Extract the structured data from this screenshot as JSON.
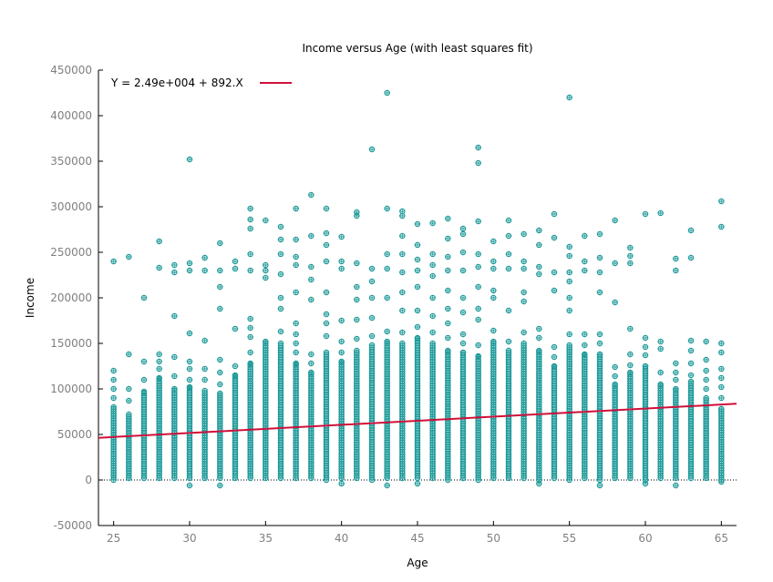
{
  "chart_data": {
    "type": "scatter",
    "title": "Income versus Age (with least squares fit)",
    "xlabel": "Age",
    "ylabel": "Income",
    "xlim": [
      24,
      66
    ],
    "ylim": [
      -50000,
      450000
    ],
    "xticks": [
      25,
      30,
      35,
      40,
      45,
      50,
      55,
      60,
      65
    ],
    "yticks": [
      -50000,
      0,
      50000,
      100000,
      150000,
      200000,
      250000,
      300000,
      350000,
      400000,
      450000
    ],
    "ytick_labels": [
      "-50000",
      "0",
      "50000",
      "100000",
      "150000",
      "200000",
      "250000",
      "300000",
      "350000",
      "400000",
      "450000"
    ],
    "zero_line": {
      "y": 0,
      "style": "dotted"
    },
    "grid": false,
    "legend_position": "top-left",
    "series": [
      {
        "name": "Y = 2.49e+004 + 892.X",
        "kind": "line",
        "color": "#d0103a",
        "intercept": 24900,
        "slope": 892,
        "x": [
          24,
          66
        ]
      },
      {
        "kind": "scatter",
        "color": "#1f9a9a",
        "marker": "circle-cross",
        "bands": [
          {
            "x": 25,
            "dense": [
              0,
              80000
            ],
            "outliers": [
              90000,
              100000,
              110000,
              120000,
              240000
            ]
          },
          {
            "x": 26,
            "dense": [
              2000,
              72000
            ],
            "outliers": [
              87000,
              100000,
              138000,
              245000
            ]
          },
          {
            "x": 27,
            "dense": [
              2000,
              97000
            ],
            "outliers": [
              110000,
              130000,
              200000
            ]
          },
          {
            "x": 28,
            "dense": [
              2000,
              112000
            ],
            "outliers": [
              122000,
              130000,
              138000,
              233000,
              262000
            ]
          },
          {
            "x": 29,
            "dense": [
              2000,
              100000
            ],
            "outliers": [
              114000,
              135000,
              180000,
              228000,
              236000
            ]
          },
          {
            "x": 30,
            "dense": [
              2000,
              102000
            ],
            "outliers": [
              -6000,
              110000,
              122000,
              130000,
              161000,
              230000,
              238000,
              352000
            ]
          },
          {
            "x": 31,
            "dense": [
              2000,
              98000
            ],
            "outliers": [
              110000,
              122000,
              153000,
              230000,
              244000
            ]
          },
          {
            "x": 32,
            "dense": [
              2000,
              95000
            ],
            "outliers": [
              -6000,
              105000,
              118000,
              132000,
              188000,
              212000,
              230000,
              260000
            ]
          },
          {
            "x": 33,
            "dense": [
              2000,
              115000
            ],
            "outliers": [
              125000,
              166000,
              232000,
              240000
            ]
          },
          {
            "x": 34,
            "dense": [
              2000,
              128000
            ],
            "outliers": [
              140000,
              157000,
              167000,
              177000,
              230000,
              248000,
              276000,
              286000,
              298000
            ]
          },
          {
            "x": 35,
            "dense": [
              2000,
              152000
            ],
            "outliers": [
              222000,
              230000,
              236000,
              285000
            ]
          },
          {
            "x": 36,
            "dense": [
              2000,
              150000
            ],
            "outliers": [
              163000,
              188000,
              200000,
              226000,
              248000,
              264000,
              278000
            ]
          },
          {
            "x": 37,
            "dense": [
              2000,
              128000
            ],
            "outliers": [
              140000,
              150000,
              160000,
              172000,
              206000,
              236000,
              245000,
              264000,
              298000
            ]
          },
          {
            "x": 38,
            "dense": [
              2000,
              118000
            ],
            "outliers": [
              128000,
              138000,
              198000,
              220000,
              234000,
              268000,
              313000
            ]
          },
          {
            "x": 39,
            "dense": [
              0,
              140000
            ],
            "outliers": [
              158000,
              172000,
              182000,
              206000,
              240000,
              258000,
              271000,
              298000
            ]
          },
          {
            "x": 40,
            "dense": [
              2000,
              130000
            ],
            "outliers": [
              -4000,
              140000,
              152000,
              175000,
              232000,
              240000,
              267000
            ]
          },
          {
            "x": 41,
            "dense": [
              2000,
              142000
            ],
            "outliers": [
              155000,
              176000,
              198000,
              212000,
              238000,
              290000,
              294000
            ]
          },
          {
            "x": 42,
            "dense": [
              0,
              148000
            ],
            "outliers": [
              158000,
              178000,
              200000,
              218000,
              232000,
              363000
            ]
          },
          {
            "x": 43,
            "dense": [
              2000,
              152000
            ],
            "outliers": [
              -6000,
              163000,
              200000,
              232000,
              248000,
              298000,
              425000
            ]
          },
          {
            "x": 44,
            "dense": [
              2000,
              150000
            ],
            "outliers": [
              162000,
              186000,
              206000,
              228000,
              248000,
              268000,
              290000,
              295000
            ]
          },
          {
            "x": 45,
            "dense": [
              2000,
              156000
            ],
            "outliers": [
              -4000,
              168000,
              186000,
              212000,
              230000,
              242000,
              258000,
              281000
            ]
          },
          {
            "x": 46,
            "dense": [
              2000,
              150000
            ],
            "outliers": [
              162000,
              180000,
              200000,
              224000,
              236000,
              248000,
              282000
            ]
          },
          {
            "x": 47,
            "dense": [
              0,
              142000
            ],
            "outliers": [
              156000,
              172000,
              188000,
              208000,
              230000,
              245000,
              265000,
              287000
            ]
          },
          {
            "x": 48,
            "dense": [
              2000,
              140000
            ],
            "outliers": [
              150000,
              160000,
              184000,
              200000,
              230000,
              250000,
              270000,
              276000
            ]
          },
          {
            "x": 49,
            "dense": [
              0,
              136000
            ],
            "outliers": [
              148000,
              176000,
              188000,
              212000,
              234000,
              248000,
              284000,
              348000,
              365000
            ]
          },
          {
            "x": 50,
            "dense": [
              2000,
              152000
            ],
            "outliers": [
              164000,
              200000,
              208000,
              232000,
              240000,
              262000
            ]
          },
          {
            "x": 51,
            "dense": [
              2000,
              142000
            ],
            "outliers": [
              152000,
              186000,
              232000,
              248000,
              268000,
              285000
            ]
          },
          {
            "x": 52,
            "dense": [
              2000,
              150000
            ],
            "outliers": [
              162000,
              196000,
              206000,
              232000,
              240000,
              270000
            ]
          },
          {
            "x": 53,
            "dense": [
              0,
              142000
            ],
            "outliers": [
              -4000,
              156000,
              166000,
              226000,
              234000,
              258000,
              274000
            ]
          },
          {
            "x": 54,
            "dense": [
              2000,
              125000
            ],
            "outliers": [
              135000,
              146000,
              208000,
              228000,
              266000,
              292000
            ]
          },
          {
            "x": 55,
            "dense": [
              0,
              148000
            ],
            "outliers": [
              160000,
              186000,
              200000,
              218000,
              228000,
              246000,
              256000,
              420000
            ]
          },
          {
            "x": 56,
            "dense": [
              2000,
              138000
            ],
            "outliers": [
              148000,
              160000,
              230000,
              240000,
              268000
            ]
          },
          {
            "x": 57,
            "dense": [
              0,
              138000
            ],
            "outliers": [
              -6000,
              150000,
              160000,
              206000,
              228000,
              244000,
              270000
            ]
          },
          {
            "x": 58,
            "dense": [
              2000,
              105000
            ],
            "outliers": [
              114000,
              124000,
              195000,
              238000,
              285000
            ]
          },
          {
            "x": 59,
            "dense": [
              2000,
              118000
            ],
            "outliers": [
              126000,
              138000,
              166000,
              238000,
              246000,
              255000
            ]
          },
          {
            "x": 60,
            "dense": [
              0,
              125000
            ],
            "outliers": [
              -4000,
              137000,
              146000,
              156000,
              292000
            ]
          },
          {
            "x": 61,
            "dense": [
              2000,
              105000
            ],
            "outliers": [
              118000,
              144000,
              152000,
              293000
            ]
          },
          {
            "x": 62,
            "dense": [
              2000,
              100000
            ],
            "outliers": [
              -6000,
              110000,
              118000,
              128000,
              230000,
              243000
            ]
          },
          {
            "x": 63,
            "dense": [
              2000,
              108000
            ],
            "outliers": [
              115000,
              128000,
              142000,
              153000,
              244000,
              274000
            ]
          },
          {
            "x": 64,
            "dense": [
              2000,
              90000
            ],
            "outliers": [
              100000,
              110000,
              120000,
              132000,
              152000
            ]
          },
          {
            "x": 65,
            "dense": [
              0,
              78000
            ],
            "outliers": [
              -2000,
              90000,
              102000,
              112000,
              122000,
              140000,
              150000,
              278000,
              306000
            ]
          }
        ]
      }
    ]
  }
}
